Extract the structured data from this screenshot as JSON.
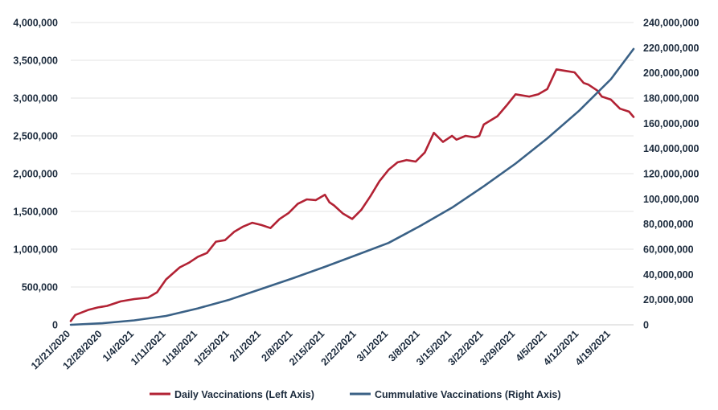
{
  "chart_data": {
    "type": "line",
    "title": "",
    "xlabel": "",
    "ylabel_left": "",
    "ylabel_right": "",
    "x_tick_labels": [
      "12/21/2020",
      "12/28/2020",
      "1/4/2021",
      "1/11/2021",
      "1/18/2021",
      "1/25/2021",
      "2/1/2021",
      "2/8/2021",
      "2/15/2021",
      "2/22/2021",
      "3/1/2021",
      "3/8/2021",
      "3/15/2021",
      "3/22/2021",
      "3/29/2021",
      "4/5/2021",
      "4/12/2021",
      "4/19/2021"
    ],
    "y_left_ticks": [
      "0",
      "500,000",
      "1,000,000",
      "1,500,000",
      "2,000,000",
      "2,500,000",
      "3,000,000",
      "3,500,000",
      "4,000,000"
    ],
    "y_right_ticks": [
      "0",
      "20,000,000",
      "40,000,000",
      "60,000,000",
      "80,000,000",
      "100,000,000",
      "120,000,000",
      "140,000,000",
      "160,000,000",
      "180,000,000",
      "200,000,000",
      "220,000,000",
      "240,000,000"
    ],
    "ylim_left": [
      0,
      4000000
    ],
    "ylim_right": [
      0,
      240000000
    ],
    "grid": true,
    "legend_position": "bottom",
    "series": [
      {
        "name": "Daily Vaccinations (Left Axis)",
        "axis": "left",
        "color": "#b22234",
        "x": [
          "2020-12-21",
          "2020-12-22",
          "2020-12-25",
          "2020-12-27",
          "2020-12-29",
          "2021-01-01",
          "2021-01-04",
          "2021-01-07",
          "2021-01-09",
          "2021-01-11",
          "2021-01-14",
          "2021-01-16",
          "2021-01-18",
          "2021-01-20",
          "2021-01-22",
          "2021-01-24",
          "2021-01-26",
          "2021-01-28",
          "2021-01-30",
          "2021-02-01",
          "2021-02-03",
          "2021-02-05",
          "2021-02-07",
          "2021-02-09",
          "2021-02-11",
          "2021-02-13",
          "2021-02-15",
          "2021-02-16",
          "2021-02-17",
          "2021-02-19",
          "2021-02-21",
          "2021-02-23",
          "2021-02-25",
          "2021-02-27",
          "2021-03-01",
          "2021-03-03",
          "2021-03-05",
          "2021-03-07",
          "2021-03-09",
          "2021-03-11",
          "2021-03-13",
          "2021-03-14",
          "2021-03-15",
          "2021-03-16",
          "2021-03-18",
          "2021-03-20",
          "2021-03-21",
          "2021-03-22",
          "2021-03-25",
          "2021-03-27",
          "2021-03-29",
          "2021-04-01",
          "2021-04-03",
          "2021-04-05",
          "2021-04-07",
          "2021-04-09",
          "2021-04-11",
          "2021-04-13",
          "2021-04-14",
          "2021-04-16",
          "2021-04-17",
          "2021-04-19",
          "2021-04-21",
          "2021-04-23",
          "2021-04-24"
        ],
        "values": [
          50000,
          130000,
          200000,
          230000,
          250000,
          310000,
          340000,
          360000,
          430000,
          600000,
          760000,
          820000,
          900000,
          950000,
          1100000,
          1120000,
          1230000,
          1300000,
          1350000,
          1320000,
          1280000,
          1400000,
          1480000,
          1600000,
          1660000,
          1650000,
          1720000,
          1620000,
          1580000,
          1470000,
          1400000,
          1520000,
          1700000,
          1900000,
          2050000,
          2150000,
          2180000,
          2160000,
          2280000,
          2540000,
          2420000,
          2460000,
          2500000,
          2450000,
          2500000,
          2480000,
          2500000,
          2650000,
          2760000,
          2900000,
          3050000,
          3020000,
          3050000,
          3120000,
          3380000,
          3360000,
          3340000,
          3200000,
          3180000,
          3100000,
          3020000,
          2980000,
          2860000,
          2820000,
          2750000
        ]
      },
      {
        "name": "Cummulative Vaccinations (Right Axis)",
        "axis": "right",
        "color": "#3a6186",
        "x": [
          "2020-12-21",
          "2020-12-28",
          "2021-01-04",
          "2021-01-11",
          "2021-01-18",
          "2021-01-25",
          "2021-02-01",
          "2021-02-08",
          "2021-02-15",
          "2021-02-22",
          "2021-03-01",
          "2021-03-08",
          "2021-03-15",
          "2021-03-22",
          "2021-03-29",
          "2021-04-05",
          "2021-04-12",
          "2021-04-19",
          "2021-04-24"
        ],
        "values": [
          0,
          1200000,
          3500000,
          7000000,
          13000000,
          20000000,
          28500000,
          37000000,
          46000000,
          55500000,
          65000000,
          78500000,
          93000000,
          110000000,
          128000000,
          148000000,
          170000000,
          195000000,
          219000000
        ]
      }
    ]
  }
}
